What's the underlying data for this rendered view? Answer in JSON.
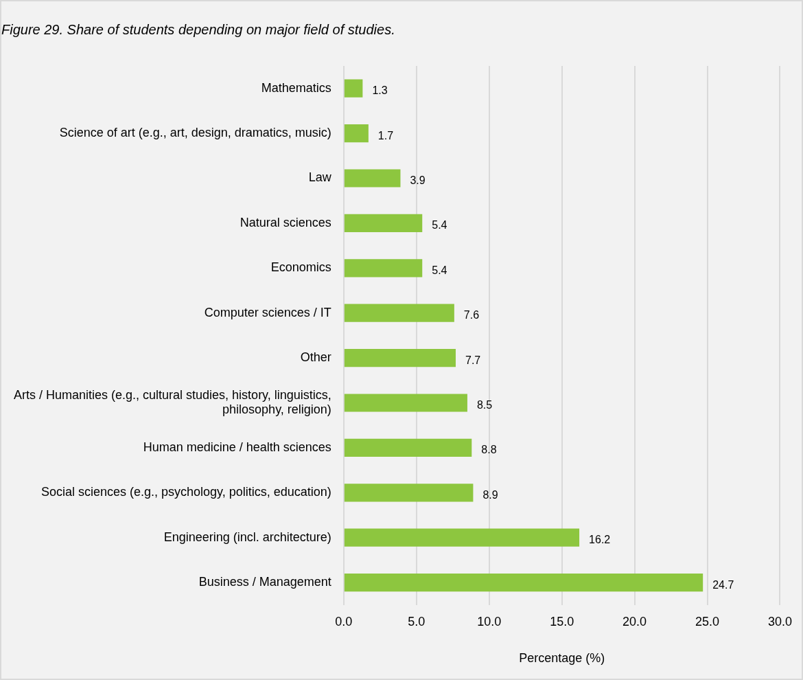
{
  "chart_data": {
    "type": "bar",
    "orientation": "horizontal",
    "title": "Figure 29. Share of students depending on major field of studies.",
    "xlabel": "Percentage (%)",
    "categories": [
      "Mathematics",
      "Science of art (e.g., art, design, dramatics, music)",
      "Law",
      "Natural sciences",
      "Economics",
      "Computer sciences / IT",
      "Other",
      "Arts / Humanities (e.g., cultural studies, history, linguistics, philosophy, religion)",
      "Human medicine / health sciences",
      "Social sciences (e.g., psychology, politics, education)",
      "Engineering (incl. architecture)",
      "Business / Management"
    ],
    "values": [
      1.3,
      1.7,
      3.9,
      5.4,
      5.4,
      7.6,
      7.7,
      8.5,
      8.8,
      8.9,
      16.2,
      24.7
    ],
    "color": "#8dc63f",
    "xlim": [
      0,
      30
    ],
    "xticks": [
      {
        "value": 0,
        "label": "0.0"
      },
      {
        "value": 5,
        "label": "5.0"
      },
      {
        "value": 10,
        "label": "10.0"
      },
      {
        "value": 15,
        "label": "15.0"
      },
      {
        "value": 20,
        "label": "20.0"
      },
      {
        "value": 25,
        "label": "25.0"
      },
      {
        "value": 30,
        "label": "30.0"
      }
    ],
    "grid": "x",
    "legend": false,
    "data_labels": true
  }
}
